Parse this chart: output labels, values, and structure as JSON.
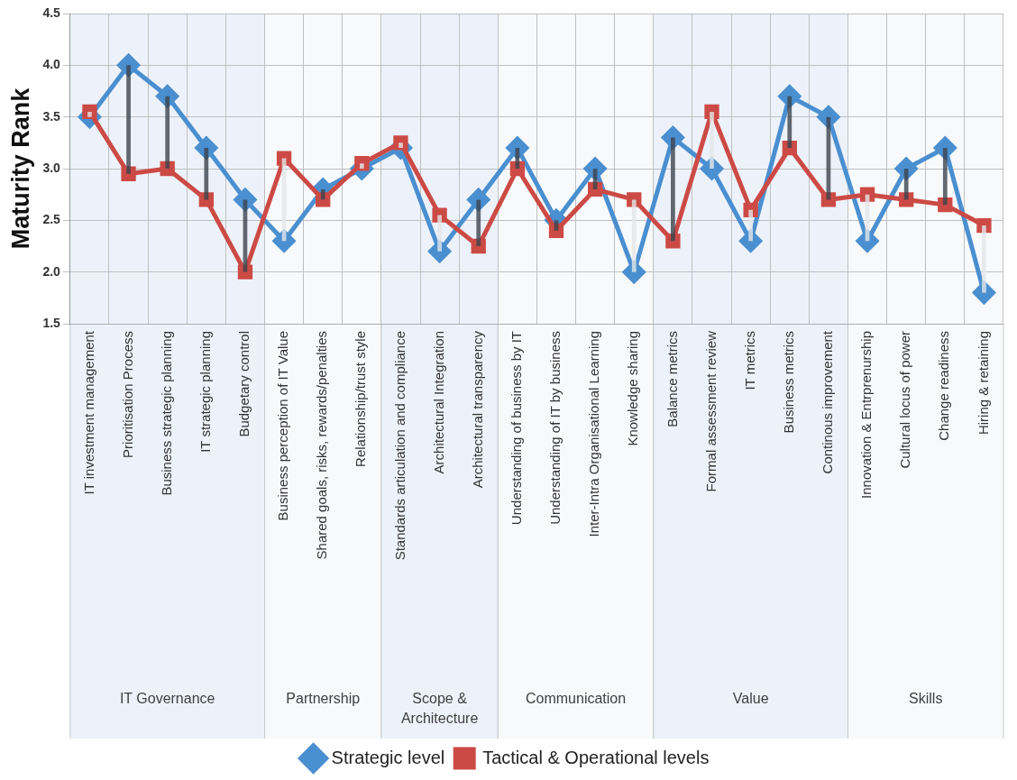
{
  "chart_data": {
    "type": "line",
    "ylabel": "Maturity Rank",
    "categories": [
      "IT investment management",
      "Prioritisation Process",
      "Business strategic planning",
      "IT strategic planning",
      "Budgetary control",
      "Business perception of IT Value",
      "Shared goals, risks, rewards/penalties",
      "Relationship/trust style",
      "Standards articulation and compliance",
      "Architectural Integration",
      "Architectural transparency",
      "Understanding of business by IT",
      "Understanding of IT by business",
      "Inter-Intra Organisational Learning",
      "Knowledge sharing",
      "Balance metrics",
      "Formal assessment review",
      "IT metrics",
      "Business metrics",
      "Continous improvement",
      "Innovation & Entrprenurship",
      "Cultural locus of power",
      "Change readiness",
      "Hiring & retaining"
    ],
    "series": [
      {
        "name": "Strategic level",
        "color": "#4a8fd0",
        "marker": "diamond",
        "values": [
          3.5,
          4.0,
          3.7,
          3.2,
          2.7,
          2.3,
          2.8,
          3.0,
          3.2,
          2.2,
          2.7,
          3.2,
          2.5,
          3.0,
          2.0,
          3.3,
          3.0,
          2.3,
          3.7,
          3.5,
          2.3,
          3.0,
          3.2,
          1.8
        ]
      },
      {
        "name": "Tactical & Operational levels",
        "color": "#cc4a45",
        "marker": "square",
        "values": [
          3.55,
          2.95,
          3.0,
          2.7,
          2.0,
          3.1,
          2.7,
          3.05,
          3.25,
          2.55,
          2.25,
          3.0,
          2.4,
          2.8,
          2.7,
          2.3,
          3.55,
          2.6,
          3.2,
          2.7,
          2.75,
          2.7,
          2.65,
          2.45
        ]
      },
      {
        "type": "bar",
        "base": [
          3.55,
          2.95,
          3.0,
          2.7,
          2.0,
          3.1,
          2.7,
          3.05,
          3.25,
          2.55,
          2.25,
          3.0,
          2.4,
          2.8,
          2.7,
          2.3,
          3.55,
          2.6,
          3.2,
          2.7,
          2.75,
          2.7,
          2.65,
          2.45
        ],
        "values": [
          -0.05,
          1.05,
          0.7,
          0.5,
          0.7,
          -0.8,
          0.1,
          -0.05,
          -0.05,
          -0.35,
          0.45,
          0.2,
          0.1,
          0.2,
          -0.7,
          1.0,
          -0.55,
          -0.3,
          0.5,
          0.8,
          -0.45,
          0.3,
          0.55,
          -0.65
        ],
        "colors": [
          "#e4e6e8",
          "#3c434d",
          "#3c434d",
          "#3c434d",
          "#3c434d",
          "#e4e6e8",
          "#3c434d",
          "#e4e6e8",
          "#e4e6e8",
          "#e4e6e8",
          "#3c434d",
          "#3c434d",
          "#3c434d",
          "#3c434d",
          "#e4e6e8",
          "#3c434d",
          "#e4e6e8",
          "#e4e6e8",
          "#3c434d",
          "#3c434d",
          "#e4e6e8",
          "#3c434d",
          "#3c434d",
          "#e4e6e8"
        ]
      }
    ],
    "ylim": [
      1.5,
      4.5
    ],
    "yticks": [
      {
        "value": 1.5,
        "label": "1.5"
      },
      {
        "value": 2,
        "label": "2.0"
      },
      {
        "value": 2.5,
        "label": "2.5"
      },
      {
        "value": 3,
        "label": "3.0"
      },
      {
        "value": 3.5,
        "label": "3.5"
      },
      {
        "value": 4,
        "label": "4.0"
      },
      {
        "value": 4.5,
        "label": "4.5"
      }
    ],
    "bands": [
      {
        "axis": "x",
        "from": "IT investment management",
        "to": "Budgetary control",
        "label": "IT Governance",
        "color": "#edf2fa"
      },
      {
        "axis": "x",
        "from": "Business perception of IT Value",
        "to": "Relationship/trust style",
        "label": "Partnership",
        "color": "#f8f9fb"
      },
      {
        "axis": "x",
        "from": "Standards articulation and compliance",
        "to": "Architectural transparency",
        "label": "Scope & Architecture",
        "color": "#edf2fa"
      },
      {
        "axis": "x",
        "from": "Understanding of business by IT",
        "to": "Knowledge sharing",
        "label": "Communication",
        "color": "#f8f9fb"
      },
      {
        "axis": "x",
        "from": "Balance metrics",
        "to": "Continous improvement",
        "label": "Value",
        "color": "#edf2fa"
      },
      {
        "axis": "x",
        "from": "Innovation & Entrprenurship",
        "to": "Hiring & retaining",
        "label": "Skills",
        "color": "#f8f9fb"
      }
    ],
    "grid": true,
    "legend": "bottom",
    "line_style": "solid"
  }
}
